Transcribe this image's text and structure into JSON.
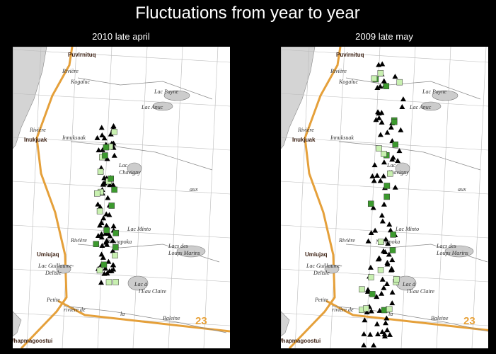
{
  "header": {
    "title": "Fluctuations from year to year"
  },
  "panels": [
    {
      "title": "2010 late april"
    },
    {
      "title": "2009 late may"
    }
  ],
  "map_labels": {
    "puvirnituq": "Puvirnituq",
    "riviere": "Rivière",
    "kogaluc": "Kogaluc",
    "lac_payne": "Lac Payne",
    "lac_anuc": "Lac Anuc",
    "inukjuak": "Inukjuak",
    "innuksuak": "Innuksuak",
    "lac": "Lac",
    "chavigny": "Chavigny",
    "aux": "aux",
    "lac_minto": "Lac Minto",
    "nastapoka": "Nastapoka",
    "umiujaq": "Umiujaq",
    "guillaume": "Lac Guillaume-",
    "delisle": "Delisle",
    "loups1": "Lacs des",
    "loups2": "Loups Marins",
    "eau1": "Lac à",
    "eau2": "l'Eau Claire",
    "petite": "Petite",
    "riv_de": "rivière de",
    "la": "la",
    "baleine": "Baleine",
    "whap": "Whapmagoostui",
    "zone": "23"
  }
}
